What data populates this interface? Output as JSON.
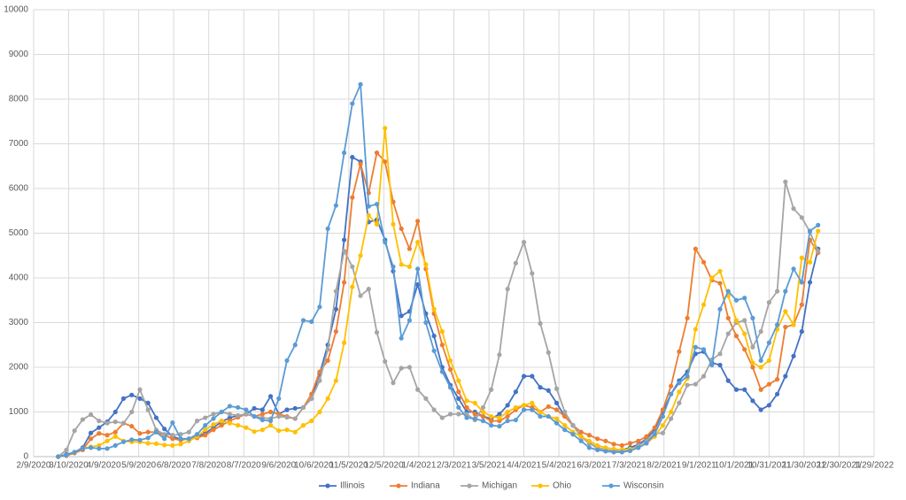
{
  "chart_data": {
    "type": "line",
    "x": [
      "3/1/2020",
      "3/8/2020",
      "3/15/2020",
      "3/22/2020",
      "3/29/2020",
      "4/5/2020",
      "4/12/2020",
      "4/19/2020",
      "4/26/2020",
      "5/3/2020",
      "5/10/2020",
      "5/17/2020",
      "5/24/2020",
      "5/31/2020",
      "6/7/2020",
      "6/14/2020",
      "6/21/2020",
      "6/28/2020",
      "7/5/2020",
      "7/12/2020",
      "7/19/2020",
      "7/26/2020",
      "8/2/2020",
      "8/9/2020",
      "8/16/2020",
      "8/23/2020",
      "8/30/2020",
      "9/6/2020",
      "9/13/2020",
      "9/20/2020",
      "9/27/2020",
      "10/4/2020",
      "10/11/2020",
      "10/18/2020",
      "10/25/2020",
      "11/1/2020",
      "11/8/2020",
      "11/15/2020",
      "11/22/2020",
      "11/29/2020",
      "12/6/2020",
      "12/13/2020",
      "12/20/2020",
      "12/27/2020",
      "1/3/2021",
      "1/10/2021",
      "1/17/2021",
      "1/24/2021",
      "1/31/2021",
      "2/7/2021",
      "2/14/2021",
      "2/21/2021",
      "2/28/2021",
      "3/7/2021",
      "3/14/2021",
      "3/21/2021",
      "3/28/2021",
      "4/4/2021",
      "4/11/2021",
      "4/18/2021",
      "4/25/2021",
      "5/2/2021",
      "5/9/2021",
      "5/16/2021",
      "5/23/2021",
      "5/30/2021",
      "6/6/2021",
      "6/13/2021",
      "6/20/2021",
      "6/27/2021",
      "7/4/2021",
      "7/11/2021",
      "7/18/2021",
      "7/25/2021",
      "8/1/2021",
      "8/8/2021",
      "8/15/2021",
      "8/22/2021",
      "8/29/2021",
      "9/5/2021",
      "9/12/2021",
      "9/19/2021",
      "9/26/2021",
      "10/3/2021",
      "10/10/2021",
      "10/17/2021",
      "10/24/2021",
      "10/31/2021",
      "11/7/2021",
      "11/14/2021",
      "11/21/2021",
      "11/28/2021",
      "12/5/2021",
      "12/12/2021"
    ],
    "series": [
      {
        "name": "Illinois",
        "color": "#4472c4",
        "values": [
          0,
          50,
          100,
          200,
          530,
          650,
          780,
          1000,
          1300,
          1380,
          1300,
          1200,
          870,
          620,
          450,
          390,
          400,
          450,
          520,
          650,
          780,
          870,
          920,
          950,
          1080,
          1050,
          1350,
          950,
          1050,
          1080,
          1100,
          1300,
          1850,
          2500,
          3300,
          4850,
          6700,
          6600,
          5250,
          5300,
          4850,
          4150,
          3150,
          3250,
          3850,
          3200,
          2700,
          2000,
          1600,
          1300,
          1000,
          1000,
          900,
          850,
          950,
          1150,
          1450,
          1800,
          1800,
          1550,
          1480,
          1200,
          900,
          700,
          450,
          300,
          200,
          150,
          130,
          150,
          200,
          270,
          400,
          600,
          1000,
          1400,
          1700,
          1900,
          2300,
          2350,
          2100,
          2050,
          1700,
          1500,
          1500,
          1250,
          1050,
          1150,
          1400,
          1800,
          2250,
          2800,
          3900,
          4650
        ]
      },
      {
        "name": "Indiana",
        "color": "#ed7d31",
        "values": [
          0,
          20,
          80,
          150,
          400,
          520,
          480,
          550,
          750,
          680,
          520,
          550,
          550,
          480,
          400,
          370,
          400,
          420,
          480,
          600,
          700,
          800,
          880,
          950,
          900,
          950,
          1000,
          950,
          900,
          850,
          1100,
          1400,
          1900,
          2150,
          2800,
          3900,
          5800,
          6550,
          5900,
          6800,
          6600,
          5700,
          5100,
          4650,
          5270,
          4200,
          3200,
          2500,
          1950,
          1450,
          1100,
          950,
          900,
          800,
          800,
          900,
          1050,
          1150,
          1100,
          1000,
          1120,
          1050,
          900,
          700,
          550,
          480,
          400,
          350,
          280,
          250,
          300,
          350,
          450,
          650,
          1050,
          1580,
          2350,
          3100,
          4650,
          4350,
          3950,
          3880,
          3100,
          2700,
          2400,
          2000,
          1500,
          1620,
          1730,
          2900,
          2950,
          3400,
          4850,
          4560
        ]
      },
      {
        "name": "Michigan",
        "color": "#a5a5a5",
        "values": [
          0,
          150,
          580,
          830,
          940,
          800,
          750,
          780,
          750,
          1000,
          1500,
          1050,
          600,
          500,
          480,
          500,
          550,
          800,
          870,
          950,
          1000,
          950,
          920,
          950,
          900,
          870,
          850,
          900,
          880,
          850,
          1100,
          1300,
          1700,
          2400,
          3700,
          4600,
          4250,
          3600,
          3750,
          2780,
          2130,
          1650,
          1980,
          2000,
          1500,
          1300,
          1050,
          870,
          950,
          950,
          950,
          820,
          1100,
          1500,
          2280,
          3750,
          4330,
          4800,
          4100,
          2980,
          2330,
          1520,
          1000,
          700,
          450,
          300,
          200,
          150,
          130,
          120,
          150,
          250,
          350,
          520,
          530,
          850,
          1200,
          1600,
          1620,
          1800,
          2170,
          2300,
          2750,
          3000,
          3050,
          2450,
          2800,
          3450,
          3700,
          6150,
          5550,
          5350,
          5030,
          4600
        ]
      },
      {
        "name": "Ohio",
        "color": "#ffc000",
        "values": [
          0,
          30,
          100,
          180,
          220,
          250,
          350,
          450,
          350,
          330,
          330,
          300,
          290,
          260,
          250,
          280,
          350,
          450,
          600,
          720,
          800,
          750,
          700,
          650,
          560,
          600,
          700,
          580,
          600,
          550,
          700,
          800,
          1000,
          1300,
          1700,
          2550,
          3800,
          4500,
          5400,
          5200,
          7350,
          5200,
          4300,
          4250,
          4800,
          4300,
          3300,
          2800,
          2150,
          1700,
          1250,
          1200,
          1000,
          900,
          870,
          1000,
          1100,
          1150,
          1200,
          1000,
          900,
          850,
          700,
          550,
          450,
          350,
          250,
          200,
          170,
          150,
          170,
          200,
          300,
          450,
          700,
          1000,
          1450,
          1750,
          2850,
          3400,
          4000,
          4150,
          3600,
          3050,
          2750,
          2100,
          2000,
          2150,
          2850,
          3250,
          2950,
          4450,
          4350,
          5050
        ]
      },
      {
        "name": "Wisconsin",
        "color": "#5b9bd5",
        "values": [
          0,
          30,
          100,
          180,
          200,
          180,
          180,
          250,
          330,
          380,
          370,
          420,
          550,
          400,
          760,
          400,
          400,
          500,
          700,
          850,
          1000,
          1130,
          1100,
          1050,
          900,
          820,
          800,
          1300,
          2150,
          2500,
          3050,
          3020,
          3350,
          5100,
          5620,
          6800,
          7900,
          8330,
          5600,
          5650,
          4800,
          4250,
          2650,
          3050,
          4200,
          3000,
          2370,
          1900,
          1550,
          1100,
          870,
          850,
          800,
          700,
          680,
          800,
          820,
          1050,
          1050,
          900,
          900,
          750,
          600,
          500,
          350,
          200,
          150,
          120,
          100,
          100,
          130,
          200,
          300,
          500,
          900,
          1400,
          1650,
          1800,
          2450,
          2400,
          2050,
          3300,
          3700,
          3500,
          3550,
          3100,
          2150,
          2550,
          2950,
          3700,
          4200,
          3900,
          5050,
          5180
        ]
      }
    ],
    "xlim": [
      "2/9/2020",
      "1/29/2022"
    ],
    "xticks": [
      "2/9/2020",
      "3/10/2020",
      "4/9/2020",
      "5/9/2020",
      "6/8/2020",
      "7/8/2020",
      "8/7/2020",
      "9/6/2020",
      "10/6/2020",
      "11/5/2020",
      "12/5/2020",
      "1/4/2021",
      "2/3/2021",
      "3/5/2021",
      "4/4/2021",
      "5/4/2021",
      "6/3/2021",
      "7/3/2021",
      "8/2/2021",
      "9/1/2021",
      "10/1/2021",
      "10/31/2021",
      "11/30/2021",
      "12/30/2021",
      "1/29/2022"
    ],
    "ylim": [
      0,
      10000
    ],
    "yticks": [
      0,
      1000,
      2000,
      3000,
      4000,
      5000,
      6000,
      7000,
      8000,
      9000,
      10000
    ],
    "grid": true,
    "legend": "bottom"
  }
}
